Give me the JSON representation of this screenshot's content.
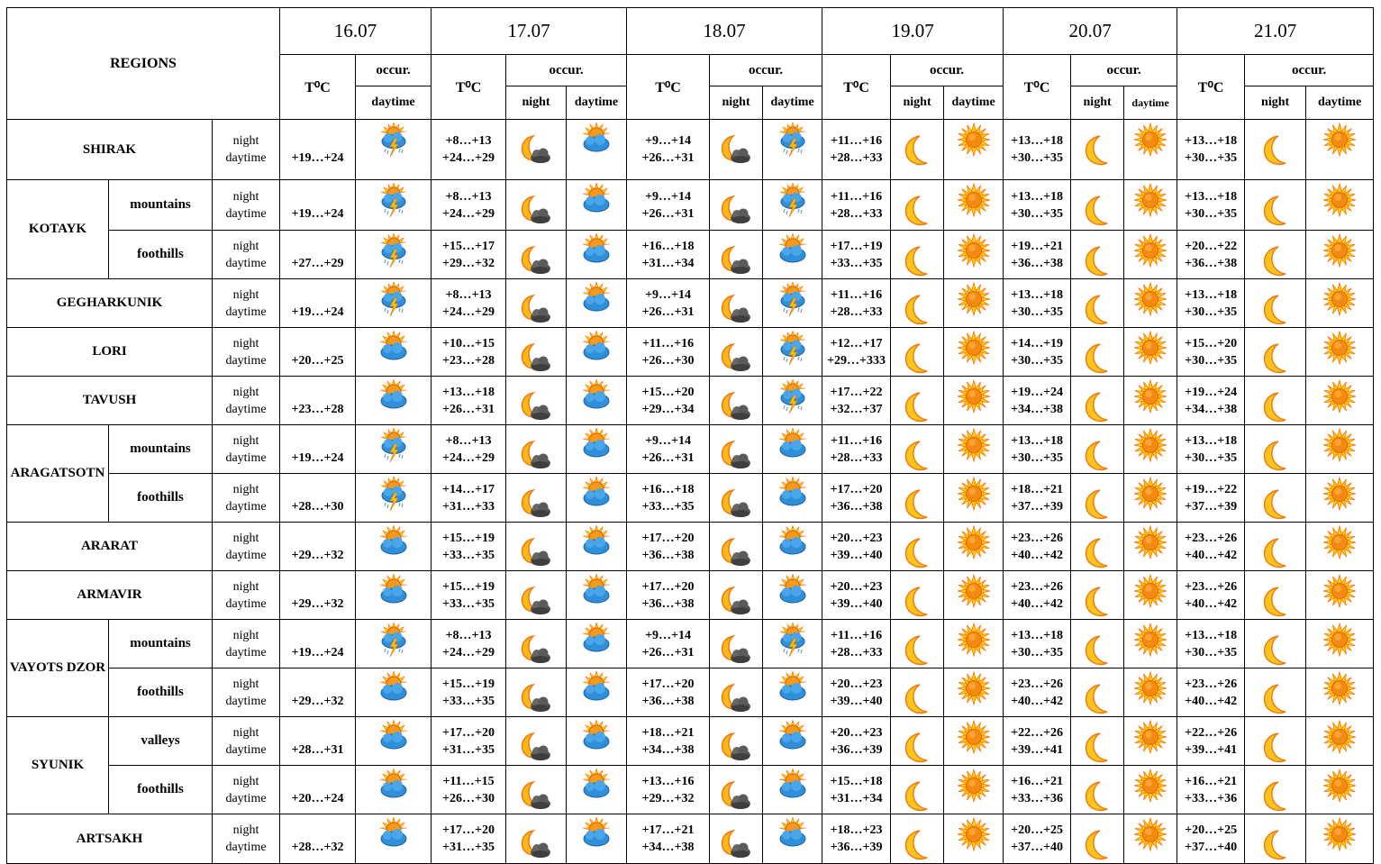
{
  "header": {
    "regions_label": "REGIONS",
    "temp_label": "T⁰C",
    "occur_label": "occur.",
    "night_label": "night",
    "daytime_label": "daytime",
    "dates": [
      "16.07",
      "17.07",
      "18.07",
      "19.07",
      "20.07",
      "21.07"
    ]
  },
  "period_labels": [
    "night",
    "daytime"
  ],
  "rows": [
    {
      "region": "SHIRAK",
      "sub": null,
      "temps": [
        [
          "",
          "+19…+24"
        ],
        [
          "+8…+13",
          "+24…+29"
        ],
        [
          "+9…+14",
          "+26…+31"
        ],
        [
          "+11…+16",
          "+28…+33"
        ],
        [
          "+13…+18",
          "+30…+35"
        ],
        [
          "+13…+18",
          "+30…+35"
        ]
      ],
      "icons": [
        [
          null,
          "storm"
        ],
        [
          "moon-cloud",
          "partly-cloudy"
        ],
        [
          "moon-cloud",
          "storm"
        ],
        [
          "moon",
          "sun"
        ],
        [
          "moon",
          "sun"
        ],
        [
          "moon",
          "sun"
        ]
      ]
    },
    {
      "region": "KOTAYK",
      "sub": "mountains",
      "span": 2,
      "temps": [
        [
          "",
          "+19…+24"
        ],
        [
          "+8…+13",
          "+24…+29"
        ],
        [
          "+9…+14",
          "+26…+31"
        ],
        [
          "+11…+16",
          "+28…+33"
        ],
        [
          "+13…+18",
          "+30…+35"
        ],
        [
          "+13…+18",
          "+30…+35"
        ]
      ],
      "icons": [
        [
          null,
          "storm"
        ],
        [
          "moon-cloud",
          "partly-cloudy"
        ],
        [
          "moon-cloud",
          "storm"
        ],
        [
          "moon",
          "sun"
        ],
        [
          "moon",
          "sun"
        ],
        [
          "moon",
          "sun"
        ]
      ]
    },
    {
      "region": null,
      "sub": "foothills",
      "temps": [
        [
          "",
          "+27…+29"
        ],
        [
          "+15…+17",
          "+29…+32"
        ],
        [
          "+16…+18",
          "+31…+34"
        ],
        [
          "+17…+19",
          "+33…+35"
        ],
        [
          "+19…+21",
          "+36…+38"
        ],
        [
          "+20…+22",
          "+36…+38"
        ]
      ],
      "icons": [
        [
          null,
          "storm"
        ],
        [
          "moon-cloud",
          "partly-cloudy"
        ],
        [
          "moon-cloud",
          "partly-cloudy"
        ],
        [
          "moon",
          "sun"
        ],
        [
          "moon",
          "sun"
        ],
        [
          "moon",
          "sun"
        ]
      ]
    },
    {
      "region": "GEGHARKUNIK",
      "sub": null,
      "temps": [
        [
          "",
          "+19…+24"
        ],
        [
          "+8…+13",
          "+24…+29"
        ],
        [
          "+9…+14",
          "+26…+31"
        ],
        [
          "+11…+16",
          "+28…+33"
        ],
        [
          "+13…+18",
          "+30…+35"
        ],
        [
          "+13…+18",
          "+30…+35"
        ]
      ],
      "icons": [
        [
          null,
          "storm"
        ],
        [
          "moon-cloud",
          "partly-cloudy"
        ],
        [
          "moon-cloud",
          "storm"
        ],
        [
          "moon",
          "sun"
        ],
        [
          "moon",
          "sun"
        ],
        [
          "moon",
          "sun"
        ]
      ]
    },
    {
      "region": "LORI",
      "sub": null,
      "temps": [
        [
          "",
          "+20…+25"
        ],
        [
          "+10…+15",
          "+23…+28"
        ],
        [
          "+11…+16",
          "+26…+30"
        ],
        [
          "+12…+17",
          "+29…+333"
        ],
        [
          "+14…+19",
          "+30…+35"
        ],
        [
          "+15…+20",
          "+30…+35"
        ]
      ],
      "icons": [
        [
          null,
          "partly-cloudy"
        ],
        [
          "moon-cloud",
          "partly-cloudy"
        ],
        [
          "moon-cloud",
          "storm"
        ],
        [
          "moon",
          "sun"
        ],
        [
          "moon",
          "sun"
        ],
        [
          "moon",
          "sun"
        ]
      ]
    },
    {
      "region": "TAVUSH",
      "sub": null,
      "temps": [
        [
          "",
          "+23…+28"
        ],
        [
          "+13…+18",
          "+26…+31"
        ],
        [
          "+15…+20",
          "+29…+34"
        ],
        [
          "+17…+22",
          "+32…+37"
        ],
        [
          "+19…+24",
          "+34…+38"
        ],
        [
          "+19…+24",
          "+34…+38"
        ]
      ],
      "icons": [
        [
          null,
          "partly-cloudy"
        ],
        [
          "moon-cloud",
          "partly-cloudy"
        ],
        [
          "moon-cloud",
          "storm"
        ],
        [
          "moon",
          "sun"
        ],
        [
          "moon",
          "sun"
        ],
        [
          "moon",
          "sun"
        ]
      ]
    },
    {
      "region": "ARAGATSOTN",
      "sub": "mountains",
      "span": 2,
      "temps": [
        [
          "",
          "+19…+24"
        ],
        [
          "+8…+13",
          "+24…+29"
        ],
        [
          "+9…+14",
          "+26…+31"
        ],
        [
          "+11…+16",
          "+28…+33"
        ],
        [
          "+13…+18",
          "+30…+35"
        ],
        [
          "+13…+18",
          "+30…+35"
        ]
      ],
      "icons": [
        [
          null,
          "storm"
        ],
        [
          "moon-cloud",
          "partly-cloudy"
        ],
        [
          "moon-cloud",
          "partly-cloudy"
        ],
        [
          "moon",
          "sun"
        ],
        [
          "moon",
          "sun"
        ],
        [
          "moon",
          "sun"
        ]
      ]
    },
    {
      "region": null,
      "sub": "foothills",
      "temps": [
        [
          "",
          "+28…+30"
        ],
        [
          "+14…+17",
          "+31…+33"
        ],
        [
          "+16…+18",
          "+33…+35"
        ],
        [
          "+17…+20",
          "+36…+38"
        ],
        [
          "+18…+21",
          "+37…+39"
        ],
        [
          "+19…+22",
          "+37…+39"
        ]
      ],
      "icons": [
        [
          null,
          "storm"
        ],
        [
          "moon-cloud",
          "partly-cloudy"
        ],
        [
          "moon-cloud",
          "partly-cloudy"
        ],
        [
          "moon",
          "sun"
        ],
        [
          "moon",
          "sun"
        ],
        [
          "moon",
          "sun"
        ]
      ]
    },
    {
      "region": "ARARAT",
      "sub": null,
      "temps": [
        [
          "",
          "+29…+32"
        ],
        [
          "+15…+19",
          "+33…+35"
        ],
        [
          "+17…+20",
          "+36…+38"
        ],
        [
          "+20…+23",
          "+39…+40"
        ],
        [
          "+23…+26",
          "+40…+42"
        ],
        [
          "+23…+26",
          "+40…+42"
        ]
      ],
      "icons": [
        [
          null,
          "partly-cloudy"
        ],
        [
          "moon-cloud",
          "partly-cloudy"
        ],
        [
          "moon-cloud",
          "partly-cloudy"
        ],
        [
          "moon",
          "sun"
        ],
        [
          "moon",
          "sun"
        ],
        [
          "moon",
          "sun"
        ]
      ]
    },
    {
      "region": "ARMAVIR",
      "sub": null,
      "temps": [
        [
          "",
          "+29…+32"
        ],
        [
          "+15…+19",
          "+33…+35"
        ],
        [
          "+17…+20",
          "+36…+38"
        ],
        [
          "+20…+23",
          "+39…+40"
        ],
        [
          "+23…+26",
          "+40…+42"
        ],
        [
          "+23…+26",
          "+40…+42"
        ]
      ],
      "icons": [
        [
          null,
          "partly-cloudy"
        ],
        [
          "moon-cloud",
          "partly-cloudy"
        ],
        [
          "moon-cloud",
          "partly-cloudy"
        ],
        [
          "moon",
          "sun"
        ],
        [
          "moon",
          "sun"
        ],
        [
          "moon",
          "sun"
        ]
      ]
    },
    {
      "region": "VAYOTS DZOR",
      "sub": "mountains",
      "span": 2,
      "temps": [
        [
          "",
          "+19…+24"
        ],
        [
          "+8…+13",
          "+24…+29"
        ],
        [
          "+9…+14",
          "+26…+31"
        ],
        [
          "+11…+16",
          "+28…+33"
        ],
        [
          "+13…+18",
          "+30…+35"
        ],
        [
          "+13…+18",
          "+30…+35"
        ]
      ],
      "icons": [
        [
          null,
          "storm"
        ],
        [
          "moon-cloud",
          "partly-cloudy"
        ],
        [
          "moon-cloud",
          "storm"
        ],
        [
          "moon",
          "sun"
        ],
        [
          "moon",
          "sun"
        ],
        [
          "moon",
          "sun"
        ]
      ]
    },
    {
      "region": null,
      "sub": "foothills",
      "temps": [
        [
          "",
          "+29…+32"
        ],
        [
          "+15…+19",
          "+33…+35"
        ],
        [
          "+17…+20",
          "+36…+38"
        ],
        [
          "+20…+23",
          "+39…+40"
        ],
        [
          "+23…+26",
          "+40…+42"
        ],
        [
          "+23…+26",
          "+40…+42"
        ]
      ],
      "icons": [
        [
          null,
          "partly-cloudy"
        ],
        [
          "moon-cloud",
          "partly-cloudy"
        ],
        [
          "moon-cloud",
          "partly-cloudy"
        ],
        [
          "moon",
          "sun"
        ],
        [
          "moon",
          "sun"
        ],
        [
          "moon",
          "sun"
        ]
      ]
    },
    {
      "region": "SYUNIK",
      "sub": "valleys",
      "span": 2,
      "temps": [
        [
          "",
          "+28…+31"
        ],
        [
          "+17…+20",
          "+31…+35"
        ],
        [
          "+18…+21",
          "+34…+38"
        ],
        [
          "+20…+23",
          "+36…+39"
        ],
        [
          "+22…+26",
          "+39…+41"
        ],
        [
          "+22…+26",
          "+39…+41"
        ]
      ],
      "icons": [
        [
          null,
          "partly-cloudy"
        ],
        [
          "moon-cloud",
          "partly-cloudy"
        ],
        [
          "moon-cloud",
          "partly-cloudy"
        ],
        [
          "moon",
          "sun"
        ],
        [
          "moon",
          "sun"
        ],
        [
          "moon",
          "sun"
        ]
      ]
    },
    {
      "region": null,
      "sub": "foothills",
      "temps": [
        [
          "",
          "+20…+24"
        ],
        [
          "+11…+15",
          "+26…+30"
        ],
        [
          "+13…+16",
          "+29…+32"
        ],
        [
          "+15…+18",
          "+31…+34"
        ],
        [
          "+16…+21",
          "+33…+36"
        ],
        [
          "+16…+21",
          "+33…+36"
        ]
      ],
      "icons": [
        [
          null,
          "partly-cloudy"
        ],
        [
          "moon-cloud",
          "partly-cloudy"
        ],
        [
          "moon-cloud",
          "partly-cloudy"
        ],
        [
          "moon",
          "sun"
        ],
        [
          "moon",
          "sun"
        ],
        [
          "moon",
          "sun"
        ]
      ]
    },
    {
      "region": "ARTSAKH",
      "sub": null,
      "temps": [
        [
          "",
          "+28…+32"
        ],
        [
          "+17…+20",
          "+31…+35"
        ],
        [
          "+17…+21",
          "+34…+38"
        ],
        [
          "+18…+23",
          "+36…+39"
        ],
        [
          "+20…+25",
          "+37…+40"
        ],
        [
          "+20…+25",
          "+37…+40"
        ]
      ],
      "icons": [
        [
          null,
          "partly-cloudy"
        ],
        [
          "moon-cloud",
          "partly-cloudy"
        ],
        [
          "moon-cloud",
          "partly-cloudy"
        ],
        [
          "moon",
          "sun"
        ],
        [
          "moon",
          "sun"
        ],
        [
          "moon",
          "sun"
        ]
      ]
    }
  ]
}
